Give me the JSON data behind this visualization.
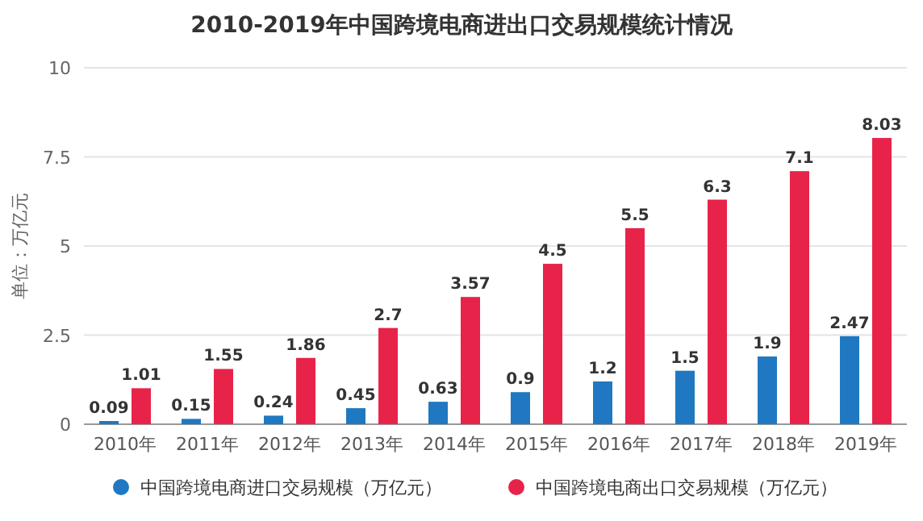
{
  "chart_data": {
    "type": "bar",
    "title": "2010-2019年中国跨境电商进出口交易规模统计情况",
    "ylabel": "单位：万亿元",
    "categories": [
      "2010年",
      "2011年",
      "2012年",
      "2013年",
      "2014年",
      "2015年",
      "2016年",
      "2017年",
      "2018年",
      "2019年"
    ],
    "series": [
      {
        "name": "中国跨境电商进口交易规模（万亿元）",
        "color": "#1f78c1",
        "values": [
          0.09,
          0.15,
          0.24,
          0.45,
          0.63,
          0.9,
          1.2,
          1.5,
          1.9,
          2.47
        ]
      },
      {
        "name": "中国跨境电商出口交易规模（万亿元）",
        "color": "#e8234a",
        "values": [
          1.01,
          1.55,
          1.86,
          2.7,
          3.57,
          4.5,
          5.5,
          6.3,
          7.1,
          8.03
        ]
      }
    ],
    "ylim": [
      0,
      10
    ],
    "yticks": [
      0,
      2.5,
      5,
      7.5,
      10
    ],
    "grid": "y",
    "legend": "bottom",
    "data_labels": true
  }
}
